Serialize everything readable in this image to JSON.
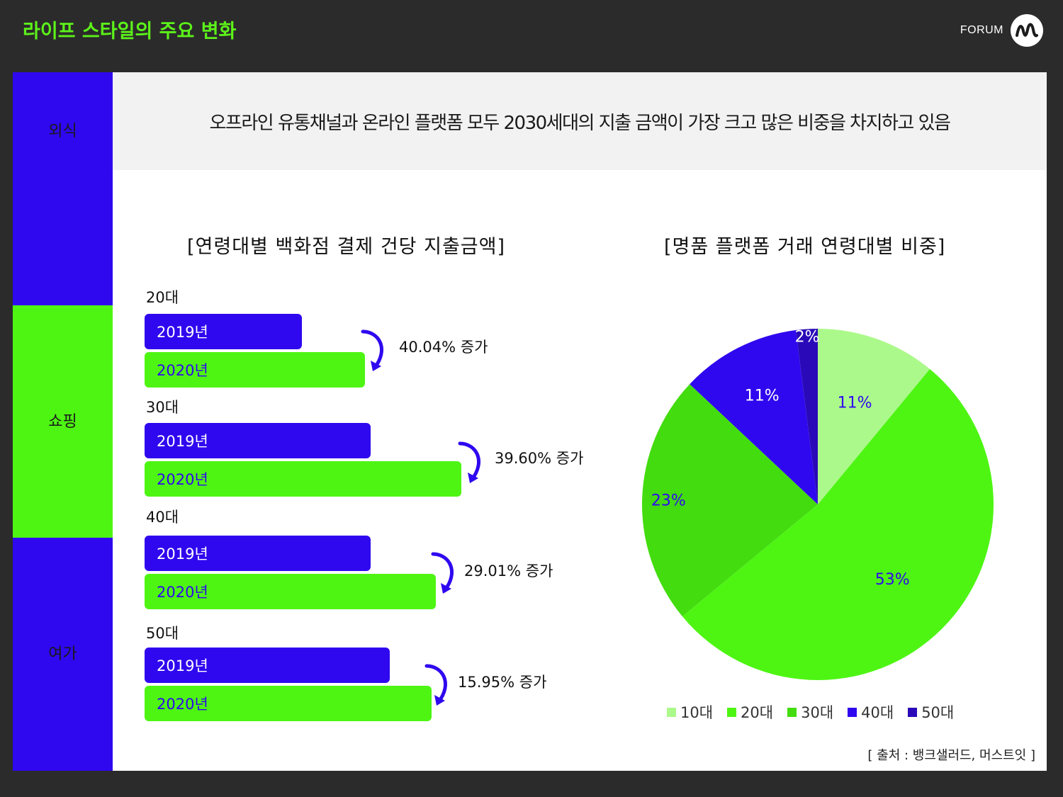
{
  "header": {
    "title": "라이프 스타일의 주요 변화",
    "brand": "FORUM"
  },
  "sidebar": {
    "items": [
      {
        "label": "외식",
        "color": "#2f08ef"
      },
      {
        "label": "쇼핑",
        "color": "#4ef513"
      },
      {
        "label": "여가",
        "color": "#2f08ef"
      }
    ]
  },
  "banner": {
    "text": "오프라인 유통채널과 온라인 플랫폼 모두 2030세대의 지출 금액이 가장 크고 많은 비중을 차지하고 있음"
  },
  "source": "[ 출처 : 뱅크샐러드, 머스트잇 ]",
  "chart_data": [
    {
      "type": "bar",
      "title": "[연령대별 백화점 결제 건당 지출금액]",
      "orientation": "horizontal",
      "series_labels": [
        "2019년",
        "2020년"
      ],
      "colors": {
        "2019년": "#2f08ef",
        "2020년": "#4ef513"
      },
      "groups": [
        {
          "category": "20대",
          "increase": "40.04% 증가"
        },
        {
          "category": "30대",
          "increase": "39.60% 증가"
        },
        {
          "category": "40대",
          "increase": "29.01% 증가"
        },
        {
          "category": "50대",
          "increase": "15.95% 증가"
        }
      ]
    },
    {
      "type": "pie",
      "title": "[명품 플랫폼 거래 연령대별 비중]",
      "slices": [
        {
          "name": "10대",
          "value": 11,
          "label": "11%",
          "color": "#acf98b"
        },
        {
          "name": "20대",
          "value": 53,
          "label": "53%",
          "color": "#4ef513"
        },
        {
          "name": "30대",
          "value": 23,
          "label": "23%",
          "color": "#43dc0f"
        },
        {
          "name": "40대",
          "value": 11,
          "label": "11%",
          "color": "#2f08ef"
        },
        {
          "name": "50대",
          "value": 2,
          "label": "2%",
          "color": "#2a0ab8"
        }
      ],
      "legend_position": "bottom"
    }
  ]
}
